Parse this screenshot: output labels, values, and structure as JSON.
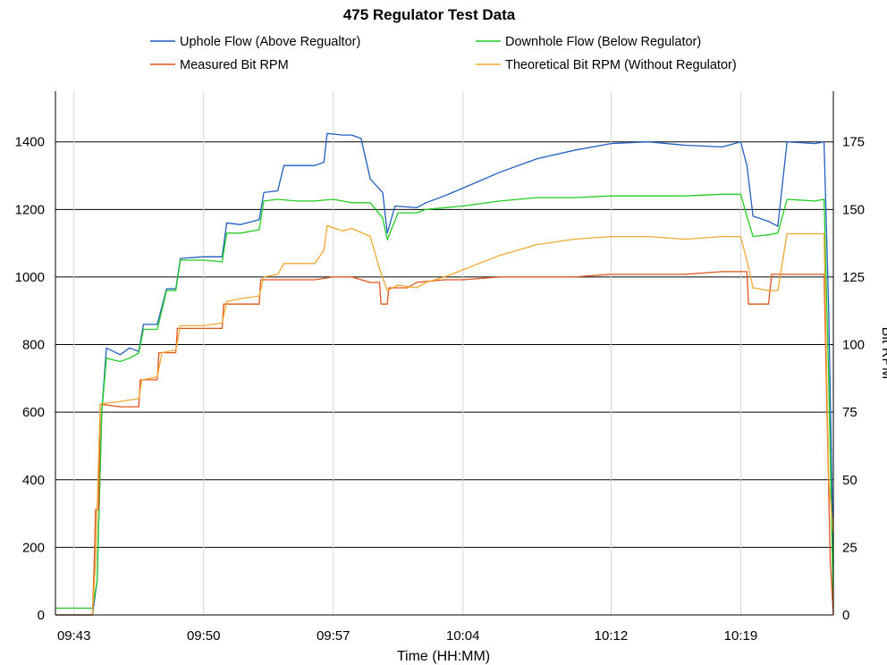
{
  "chart_data": {
    "type": "line",
    "title": "475 Regulator Test Data",
    "xlabel": "Time (HH:MM)",
    "ylabel_left": "",
    "ylabel_right": "Bit RPM",
    "x_ticks": [
      "09:43",
      "09:50",
      "09:57",
      "10:04",
      "10:12",
      "10:19"
    ],
    "x_range": [
      "09:42",
      "10:24"
    ],
    "ylim_left": [
      0,
      1550
    ],
    "y_ticks_left": [
      0,
      200,
      400,
      600,
      800,
      1000,
      1200,
      1400
    ],
    "ylim_right": [
      0,
      193.75
    ],
    "y_ticks_right": [
      0,
      25,
      50,
      75,
      100,
      125,
      150,
      175
    ],
    "grid": true,
    "legend_position": "top",
    "series": [
      {
        "name": "Uphole Flow (Above Regualtor)",
        "axis": "left",
        "color": "#1f5fbf",
        "points": [
          [
            "09:42",
            0
          ],
          [
            "09:44",
            0
          ],
          [
            "09:44:15",
            100
          ],
          [
            "09:44:30",
            600
          ],
          [
            "09:44:45",
            790
          ],
          [
            "09:45:30",
            770
          ],
          [
            "09:46",
            790
          ],
          [
            "09:46:30",
            780
          ],
          [
            "09:46:45",
            860
          ],
          [
            "09:47:30",
            860
          ],
          [
            "09:48",
            965
          ],
          [
            "09:48:30",
            965
          ],
          [
            "09:48:45",
            1055
          ],
          [
            "09:50",
            1060
          ],
          [
            "09:51",
            1060
          ],
          [
            "09:51:15",
            1160
          ],
          [
            "09:52",
            1155
          ],
          [
            "09:53",
            1170
          ],
          [
            "09:53:15",
            1250
          ],
          [
            "09:54",
            1255
          ],
          [
            "09:54:20",
            1330
          ],
          [
            "09:56",
            1330
          ],
          [
            "09:56:30",
            1340
          ],
          [
            "09:56:40",
            1425
          ],
          [
            "09:57:30",
            1420
          ],
          [
            "09:58",
            1420
          ],
          [
            "09:58:30",
            1410
          ],
          [
            "09:59",
            1290
          ],
          [
            "09:59:40",
            1250
          ],
          [
            "09:59:55",
            1130
          ],
          [
            "10:00:20",
            1210
          ],
          [
            "10:01:30",
            1205
          ],
          [
            "10:02",
            1220
          ],
          [
            "10:03",
            1240
          ],
          [
            "10:04:30",
            1275
          ],
          [
            "10:06",
            1310
          ],
          [
            "10:08",
            1350
          ],
          [
            "10:10",
            1375
          ],
          [
            "10:12",
            1395
          ],
          [
            "10:14",
            1400
          ],
          [
            "10:16",
            1390
          ],
          [
            "10:18",
            1385
          ],
          [
            "10:19",
            1400
          ],
          [
            "10:19:20",
            1330
          ],
          [
            "10:19:40",
            1180
          ],
          [
            "10:20:30",
            1165
          ],
          [
            "10:21",
            1150
          ],
          [
            "10:21:30",
            1400
          ],
          [
            "10:23",
            1395
          ],
          [
            "10:23:30",
            1400
          ],
          [
            "10:23:45",
            900
          ],
          [
            "10:24",
            150
          ]
        ]
      },
      {
        "name": "Downhole Flow (Below Regulator)",
        "axis": "left",
        "color": "#22cc22",
        "points": [
          [
            "09:42",
            20
          ],
          [
            "09:44",
            20
          ],
          [
            "09:44:15",
            100
          ],
          [
            "09:44:30",
            600
          ],
          [
            "09:44:45",
            760
          ],
          [
            "09:45:30",
            750
          ],
          [
            "09:46",
            760
          ],
          [
            "09:46:30",
            775
          ],
          [
            "09:46:45",
            845
          ],
          [
            "09:47:30",
            845
          ],
          [
            "09:48",
            960
          ],
          [
            "09:48:30",
            960
          ],
          [
            "09:48:45",
            1050
          ],
          [
            "09:50",
            1050
          ],
          [
            "09:51",
            1045
          ],
          [
            "09:51:15",
            1130
          ],
          [
            "09:52",
            1130
          ],
          [
            "09:53",
            1140
          ],
          [
            "09:53:15",
            1225
          ],
          [
            "09:54",
            1230
          ],
          [
            "09:55",
            1225
          ],
          [
            "09:56",
            1225
          ],
          [
            "09:57",
            1230
          ],
          [
            "09:58",
            1220
          ],
          [
            "09:59",
            1220
          ],
          [
            "09:59:40",
            1175
          ],
          [
            "09:59:55",
            1110
          ],
          [
            "10:00:30",
            1190
          ],
          [
            "10:01:30",
            1190
          ],
          [
            "10:02",
            1200
          ],
          [
            "10:04",
            1210
          ],
          [
            "10:06",
            1225
          ],
          [
            "10:08",
            1235
          ],
          [
            "10:10",
            1235
          ],
          [
            "10:12",
            1240
          ],
          [
            "10:14",
            1240
          ],
          [
            "10:16",
            1240
          ],
          [
            "10:18",
            1245
          ],
          [
            "10:19",
            1245
          ],
          [
            "10:19:20",
            1180
          ],
          [
            "10:19:40",
            1120
          ],
          [
            "10:20:30",
            1125
          ],
          [
            "10:21",
            1130
          ],
          [
            "10:21:30",
            1230
          ],
          [
            "10:23",
            1225
          ],
          [
            "10:23:30",
            1230
          ],
          [
            "10:23:45",
            700
          ],
          [
            "10:24",
            20
          ]
        ]
      },
      {
        "name": "Measured Bit RPM",
        "axis": "right",
        "color": "#e0531a",
        "points": [
          [
            "09:42",
            0
          ],
          [
            "09:44",
            0
          ],
          [
            "09:44:05",
            17
          ],
          [
            "09:44:10",
            39
          ],
          [
            "09:44:20",
            39
          ],
          [
            "09:44:25",
            78
          ],
          [
            "09:45:30",
            77
          ],
          [
            "09:46:30",
            77
          ],
          [
            "09:46:35",
            87
          ],
          [
            "09:47:30",
            87
          ],
          [
            "09:47:35",
            97
          ],
          [
            "09:48:30",
            97
          ],
          [
            "09:48:35",
            106
          ],
          [
            "09:50",
            106
          ],
          [
            "09:51",
            106
          ],
          [
            "09:51:05",
            115
          ],
          [
            "09:52",
            115
          ],
          [
            "09:53",
            115
          ],
          [
            "09:53:05",
            124
          ],
          [
            "09:56",
            124
          ],
          [
            "09:57",
            125
          ],
          [
            "09:58",
            125
          ],
          [
            "09:59",
            123
          ],
          [
            "09:59:30",
            123
          ],
          [
            "09:59:35",
            115
          ],
          [
            "09:59:55",
            115
          ],
          [
            "10:00",
            121
          ],
          [
            "10:01",
            121
          ],
          [
            "10:01:30",
            123
          ],
          [
            "10:03",
            124
          ],
          [
            "10:04",
            124
          ],
          [
            "10:06",
            125
          ],
          [
            "10:08",
            125
          ],
          [
            "10:10",
            125
          ],
          [
            "10:12",
            126
          ],
          [
            "10:14",
            126
          ],
          [
            "10:16",
            126
          ],
          [
            "10:18",
            127
          ],
          [
            "10:19",
            127
          ],
          [
            "10:19:20",
            127
          ],
          [
            "10:19:25",
            115
          ],
          [
            "10:20:30",
            115
          ],
          [
            "10:20:40",
            126
          ],
          [
            "10:21",
            126
          ],
          [
            "10:23",
            126
          ],
          [
            "10:23:30",
            126
          ],
          [
            "10:23:50",
            20
          ],
          [
            "10:24",
            0
          ]
        ]
      },
      {
        "name": "Theoretical Bit RPM (Without Regulator)",
        "axis": "right",
        "color": "#f0a830",
        "points": [
          [
            "09:42",
            0
          ],
          [
            "09:44",
            0
          ],
          [
            "09:44:10",
            20
          ],
          [
            "09:44:25",
            78
          ],
          [
            "09:45:30",
            79
          ],
          [
            "09:46:30",
            80
          ],
          [
            "09:46:40",
            87
          ],
          [
            "09:47:30",
            88
          ],
          [
            "09:47:45",
            97
          ],
          [
            "09:48:30",
            98
          ],
          [
            "09:48:45",
            107
          ],
          [
            "09:50",
            107
          ],
          [
            "09:51",
            108
          ],
          [
            "09:51:15",
            116
          ],
          [
            "09:52",
            117
          ],
          [
            "09:53",
            118
          ],
          [
            "09:53:15",
            125
          ],
          [
            "09:54",
            126
          ],
          [
            "09:54:20",
            130
          ],
          [
            "09:55",
            130
          ],
          [
            "09:56",
            130
          ],
          [
            "09:56:30",
            135
          ],
          [
            "09:56:40",
            144
          ],
          [
            "09:57:30",
            142
          ],
          [
            "09:58",
            143
          ],
          [
            "09:59",
            140
          ],
          [
            "09:59:30",
            128
          ],
          [
            "09:59:55",
            120
          ],
          [
            "10:00:30",
            122
          ],
          [
            "10:01:30",
            121
          ],
          [
            "10:02",
            123
          ],
          [
            "10:03",
            125
          ],
          [
            "10:04:30",
            129
          ],
          [
            "10:06",
            133
          ],
          [
            "10:08",
            137
          ],
          [
            "10:10",
            139
          ],
          [
            "10:12",
            140
          ],
          [
            "10:14",
            140
          ],
          [
            "10:16",
            139
          ],
          [
            "10:18",
            140
          ],
          [
            "10:19",
            140
          ],
          [
            "10:19:20",
            131
          ],
          [
            "10:19:40",
            121
          ],
          [
            "10:20:30",
            120
          ],
          [
            "10:21",
            120
          ],
          [
            "10:21:30",
            141
          ],
          [
            "10:23",
            141
          ],
          [
            "10:23:30",
            141
          ],
          [
            "10:23:45",
            50
          ],
          [
            "10:24",
            30
          ]
        ]
      }
    ]
  }
}
